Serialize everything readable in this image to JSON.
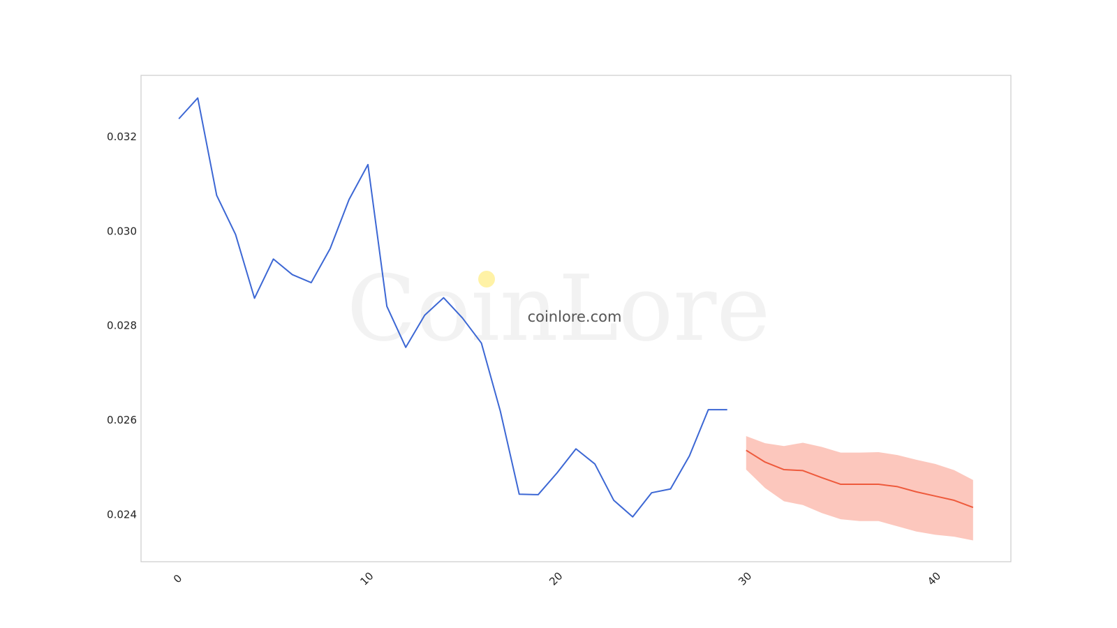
{
  "colors": {
    "history_line": "#3c67d4",
    "forecast_line": "#ee5a3c",
    "forecast_band": "#fcc7bd",
    "frame": "#cccccc",
    "watermark_dot": "#fff2a6"
  },
  "watermark": {
    "brand": "CoinLore",
    "site": "coinlore.com"
  },
  "chart_data": {
    "type": "line",
    "title": "",
    "xlabel": "",
    "ylabel": "",
    "xlim": [
      -2,
      44
    ],
    "ylim": [
      0.023,
      0.0333
    ],
    "grid": false,
    "x_ticks": [
      0,
      10,
      20,
      30,
      40
    ],
    "y_ticks": [
      0.024,
      0.026,
      0.028,
      0.03,
      0.032
    ],
    "y_tick_labels": [
      "0.024",
      "0.026",
      "0.028",
      "0.030",
      "0.032"
    ],
    "history": {
      "x": [
        0,
        1,
        2,
        3,
        4,
        5,
        6,
        7,
        8,
        9,
        10,
        11,
        12,
        13,
        14,
        15,
        16,
        17,
        18,
        19,
        20,
        21,
        22,
        23,
        24,
        25,
        26,
        27,
        28,
        29
      ],
      "y": [
        0.03238,
        0.03282,
        0.03076,
        0.02993,
        0.02858,
        0.02941,
        0.02908,
        0.02891,
        0.02963,
        0.03067,
        0.03141,
        0.02841,
        0.02754,
        0.02822,
        0.02859,
        0.02816,
        0.02763,
        0.02619,
        0.02443,
        0.02442,
        0.02488,
        0.02539,
        0.02507,
        0.0243,
        0.02395,
        0.02446,
        0.02454,
        0.02524,
        0.02622,
        0.02622
      ]
    },
    "forecast": {
      "x": [
        30,
        31,
        32,
        33,
        34,
        35,
        36,
        37,
        38,
        39,
        40,
        41,
        42
      ],
      "y": [
        0.02536,
        0.02511,
        0.02495,
        0.02493,
        0.02478,
        0.02464,
        0.02464,
        0.02464,
        0.02459,
        0.02448,
        0.02439,
        0.0243,
        0.02415
      ],
      "upper": [
        0.02566,
        0.02551,
        0.02545,
        0.02552,
        0.02543,
        0.02531,
        0.02531,
        0.02532,
        0.02526,
        0.02516,
        0.02507,
        0.02494,
        0.02473
      ],
      "lower": [
        0.02495,
        0.02456,
        0.02428,
        0.0242,
        0.02403,
        0.0239,
        0.02386,
        0.02386,
        0.02375,
        0.02364,
        0.02357,
        0.02353,
        0.02345
      ]
    }
  }
}
